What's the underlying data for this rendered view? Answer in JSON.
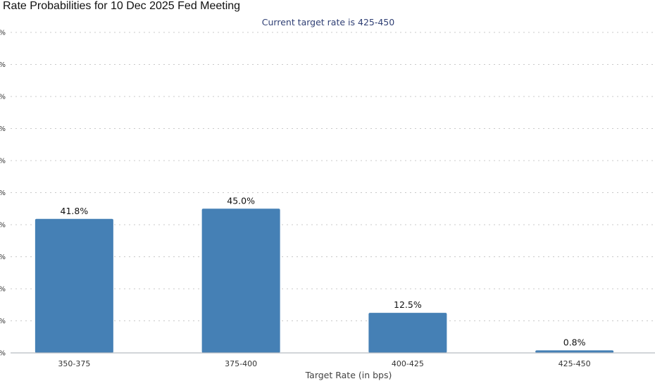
{
  "page": {
    "title": "Rate Probabilities for 10 Dec 2025 Fed Meeting"
  },
  "chart_data": {
    "type": "bar",
    "title": "Rate Probabilities for 10 Dec 2025 Fed Meeting",
    "subtitle": "Current target rate is 425-450",
    "xlabel": "Target Rate (in bps)",
    "ylabel": "",
    "categories": [
      "350-375",
      "375-400",
      "400-425",
      "425-450"
    ],
    "values": [
      41.8,
      45.0,
      12.5,
      0.8
    ],
    "value_labels": [
      "41.8%",
      "45.0%",
      "12.5%",
      "0.8%"
    ],
    "ylim": [
      0,
      100
    ],
    "yticks": [
      0,
      10,
      20,
      30,
      40,
      50,
      60,
      70,
      80,
      90,
      100
    ],
    "ytick_labels": [
      "%",
      "%",
      "%",
      "%",
      "%",
      "%",
      "%",
      "%",
      "%",
      "%",
      "%"
    ],
    "grid": true,
    "legend": false,
    "colors": {
      "bar": "#4580b5",
      "subtitle": "#2f3f74"
    }
  }
}
